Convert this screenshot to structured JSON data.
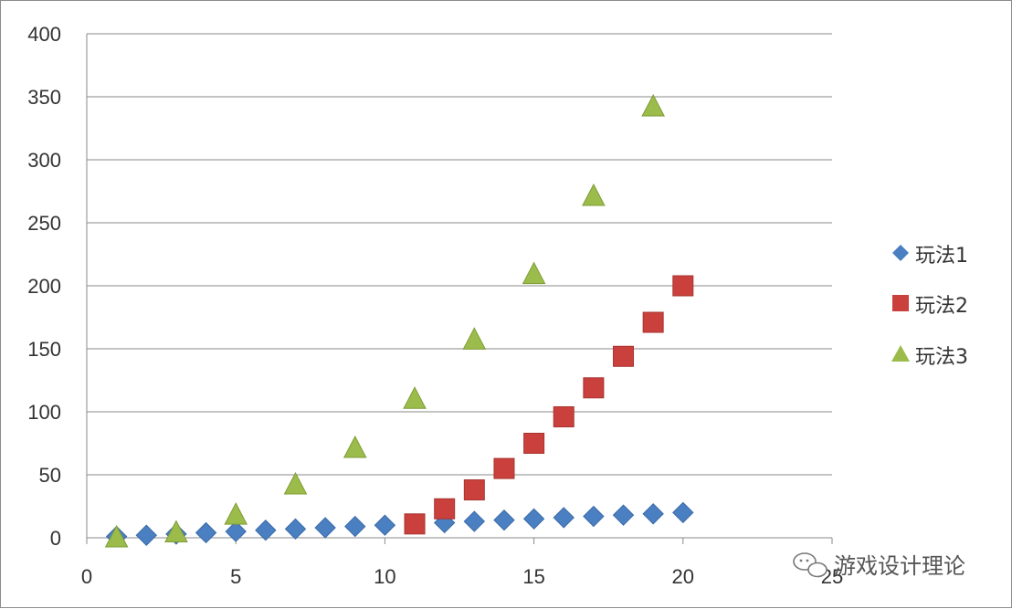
{
  "chart_data": {
    "type": "scatter",
    "title": "",
    "xlabel": "",
    "ylabel": "",
    "xlim": [
      0,
      25
    ],
    "ylim": [
      0,
      400
    ],
    "x_ticks": [
      "0",
      "5",
      "10",
      "15",
      "20",
      "25"
    ],
    "y_ticks": [
      "0",
      "50",
      "100",
      "150",
      "200",
      "250",
      "300",
      "350",
      "400"
    ],
    "grid": "horizontal",
    "legend_position": "right",
    "series": [
      {
        "name": "玩法1",
        "marker": "diamond",
        "color": "#4a7fc1",
        "points": [
          [
            1,
            1
          ],
          [
            2,
            2
          ],
          [
            3,
            3
          ],
          [
            4,
            4
          ],
          [
            5,
            5
          ],
          [
            6,
            6
          ],
          [
            7,
            7
          ],
          [
            8,
            8
          ],
          [
            9,
            9
          ],
          [
            10,
            10
          ],
          [
            11,
            11
          ],
          [
            12,
            12
          ],
          [
            13,
            13
          ],
          [
            14,
            14
          ],
          [
            15,
            15
          ],
          [
            16,
            16
          ],
          [
            17,
            17
          ],
          [
            18,
            18
          ],
          [
            19,
            19
          ],
          [
            20,
            20
          ]
        ]
      },
      {
        "name": "玩法2",
        "marker": "square",
        "color": "#c9403c",
        "points": [
          [
            11,
            11
          ],
          [
            12,
            23
          ],
          [
            13,
            38
          ],
          [
            14,
            55
          ],
          [
            15,
            75
          ],
          [
            16,
            96
          ],
          [
            17,
            119
          ],
          [
            18,
            144
          ],
          [
            19,
            171
          ],
          [
            20,
            200
          ]
        ]
      },
      {
        "name": "玩法3",
        "marker": "triangle",
        "color": "#9bbb4a",
        "points": [
          [
            1,
            0
          ],
          [
            3,
            4
          ],
          [
            5,
            18
          ],
          [
            7,
            42
          ],
          [
            9,
            71
          ],
          [
            11,
            110
          ],
          [
            13,
            157
          ],
          [
            15,
            209
          ],
          [
            17,
            271
          ],
          [
            19,
            342
          ]
        ]
      }
    ]
  },
  "watermark": {
    "text": "游戏设计理论",
    "icon": "chat-bubble-icon"
  }
}
